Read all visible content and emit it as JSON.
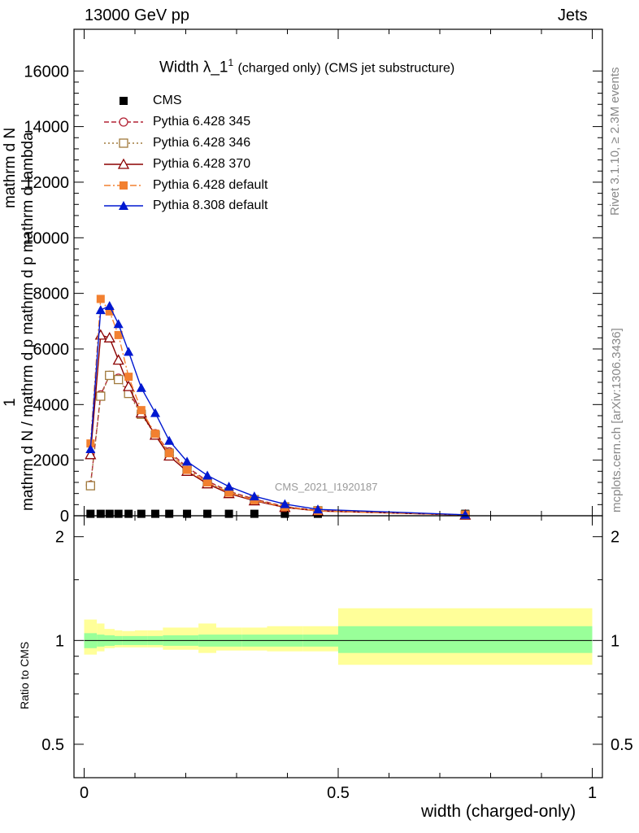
{
  "header": {
    "left": "13000 GeV pp",
    "right": "Jets"
  },
  "side_labels": {
    "rivet": "Rivet 3.1.10, ≥ 2.3M events",
    "mcplots": "mcplots.cern.ch [arXiv:1306.3436]"
  },
  "title": {
    "main": "Width λ_1",
    "sup": "1",
    "sub": "(charged only) (CMS jet substructure)"
  },
  "watermark": "CMS_2021_I1920187",
  "ylabel_lines": [
    "1",
    "mathrm d N",
    "mathrm d N / mathrm d p",
    "mathrm d p mathrm d lambda"
  ],
  "ylabel_full": "mathrm d N / mathrm d p mathrm d p mathrm d lambda",
  "xlabel": "width (charged-only)",
  "ratio_ylabel": "Ratio to CMS",
  "chart_data": {
    "type": "line",
    "xlim": [
      -0.02,
      1.02
    ],
    "ylim": [
      0,
      17500
    ],
    "ratio_ylim": [
      0.4,
      2.3
    ],
    "ratio_log": true,
    "grid": false,
    "legend_placement": "top-left",
    "x_ticks": [
      0,
      0.5,
      1
    ],
    "x_tick_labels": [
      "0",
      "0.5",
      "1"
    ],
    "y_ticks": [
      0,
      2000,
      4000,
      6000,
      8000,
      10000,
      12000,
      14000,
      16000
    ],
    "y_tick_labels": [
      "0",
      "2000",
      "4000",
      "6000",
      "8000",
      "10000",
      "12000",
      "14000",
      "16000"
    ],
    "ratio_ticks": [
      0.5,
      1,
      2
    ],
    "ratio_tick_labels": [
      "0.5",
      "1",
      "2"
    ],
    "x": [
      0.0125,
      0.0325,
      0.05,
      0.0675,
      0.0875,
      0.1125,
      0.14,
      0.1675,
      0.2025,
      0.2425,
      0.285,
      0.335,
      0.395,
      0.46,
      0.75
    ],
    "series": [
      {
        "name": "CMS",
        "color": "#000000",
        "marker": "square-filled",
        "dash": "none",
        "values": [
          70,
          70,
          70,
          70,
          70,
          70,
          70,
          70,
          70,
          70,
          70,
          70,
          70,
          70,
          70
        ]
      },
      {
        "name": "Pythia 6.428 345",
        "color": "#b22234",
        "marker": "circle-open",
        "dash": "6,3",
        "values": [
          1100,
          4350,
          5050,
          4950,
          4450,
          3700,
          2950,
          2300,
          1750,
          1250,
          880,
          600,
          330,
          190,
          30
        ]
      },
      {
        "name": "Pythia 6.428 346",
        "color": "#a07a3c",
        "marker": "square-open",
        "dash": "2,3",
        "values": [
          1080,
          4300,
          5050,
          4900,
          4400,
          3650,
          2900,
          2250,
          1700,
          1200,
          850,
          580,
          320,
          180,
          30
        ]
      },
      {
        "name": "Pythia 6.428 370",
        "color": "#8b0000",
        "marker": "triangle-open",
        "dash": "none",
        "values": [
          2200,
          6500,
          6400,
          5600,
          4650,
          3700,
          2900,
          2150,
          1600,
          1150,
          800,
          540,
          300,
          170,
          25
        ]
      },
      {
        "name": "Pythia 6.428 default",
        "color": "#f28030",
        "marker": "square-filled",
        "dash": "8,3,2,3",
        "values": [
          2600,
          7800,
          7350,
          6500,
          5000,
          3800,
          2950,
          2250,
          1650,
          1200,
          830,
          560,
          310,
          175,
          28
        ]
      },
      {
        "name": "Pythia 8.308 default",
        "color": "#0018d0",
        "marker": "triangle-filled",
        "dash": "none",
        "values": [
          2400,
          7400,
          7550,
          6900,
          5900,
          4600,
          3700,
          2700,
          1950,
          1450,
          1050,
          700,
          420,
          230,
          35
        ]
      }
    ],
    "ratio_bands": {
      "edges": [
        0.0,
        0.025,
        0.04,
        0.06,
        0.075,
        0.1,
        0.125,
        0.155,
        0.18,
        0.225,
        0.26,
        0.31,
        0.36,
        0.43,
        0.5,
        1.0
      ],
      "stat_low": [
        0.95,
        0.96,
        0.965,
        0.97,
        0.97,
        0.97,
        0.97,
        0.965,
        0.965,
        0.96,
        0.96,
        0.96,
        0.96,
        0.96,
        0.92
      ],
      "stat_high": [
        1.05,
        1.04,
        1.035,
        1.03,
        1.03,
        1.03,
        1.03,
        1.035,
        1.035,
        1.04,
        1.04,
        1.04,
        1.04,
        1.04,
        1.1
      ],
      "total_low": [
        0.91,
        0.93,
        0.95,
        0.955,
        0.955,
        0.955,
        0.955,
        0.94,
        0.94,
        0.92,
        0.935,
        0.935,
        0.93,
        0.93,
        0.85
      ],
      "total_high": [
        1.15,
        1.12,
        1.08,
        1.07,
        1.065,
        1.07,
        1.07,
        1.09,
        1.09,
        1.12,
        1.09,
        1.09,
        1.1,
        1.1,
        1.24
      ],
      "stat_color": "#99ff99",
      "total_color": "#ffff99"
    }
  }
}
